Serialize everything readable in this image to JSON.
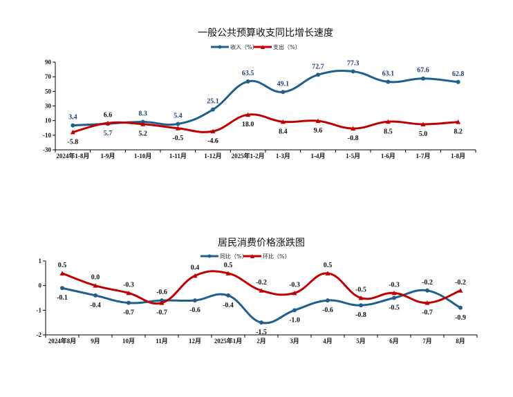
{
  "chart_data": [
    {
      "type": "line",
      "title": "一般公共预算收支同比增长速度",
      "categories": [
        "2024年1-8月",
        "1-9月",
        "1-10月",
        "1-11月",
        "1-12月",
        "2025年1-2月",
        "1-3月",
        "1-4月",
        "1-5月",
        "1-6月",
        "1-7月",
        "1-8月"
      ],
      "series": [
        {
          "name": "收入（%）",
          "color": "#1f5f8b",
          "marker": "circle",
          "values": [
            3.4,
            5.7,
            8.3,
            5.4,
            25.1,
            63.5,
            49.1,
            72.7,
            77.3,
            63.1,
            67.6,
            62.8
          ]
        },
        {
          "name": "支出（%）",
          "color": "#c00000",
          "marker": "triangle",
          "values": [
            -5.8,
            6.6,
            5.2,
            -0.5,
            -4.6,
            18.0,
            8.4,
            9.6,
            -0.8,
            8.5,
            5.0,
            8.2
          ]
        }
      ],
      "ylim": [
        -30,
        90
      ],
      "yticks": [
        90,
        70,
        50,
        30,
        10,
        -10,
        -30
      ],
      "legend": "top",
      "grid": false
    },
    {
      "type": "line",
      "title": "居民消费价格涨跌图",
      "categories": [
        "2024年8月",
        "9月",
        "10月",
        "11月",
        "12月",
        "2025年1月",
        "2月",
        "3月",
        "4月",
        "5月",
        "6月",
        "7月",
        "8月"
      ],
      "series": [
        {
          "name": "同比（%）",
          "color": "#1f5f8b",
          "marker": "circle",
          "values": [
            -0.1,
            -0.4,
            -0.7,
            -0.6,
            -0.6,
            -0.4,
            -1.5,
            -1.0,
            -0.6,
            -0.8,
            -0.5,
            -0.2,
            -0.9
          ]
        },
        {
          "name": "环比（%）",
          "color": "#c00000",
          "marker": "triangle",
          "values": [
            0.5,
            0.0,
            -0.3,
            -0.7,
            0.4,
            0.5,
            -0.2,
            -0.3,
            0.5,
            -0.5,
            -0.3,
            -0.7,
            -0.2
          ]
        }
      ],
      "ylim": [
        -2,
        1
      ],
      "yticks": [
        1,
        0,
        -1,
        -2
      ],
      "legend": "top",
      "grid": false
    }
  ]
}
